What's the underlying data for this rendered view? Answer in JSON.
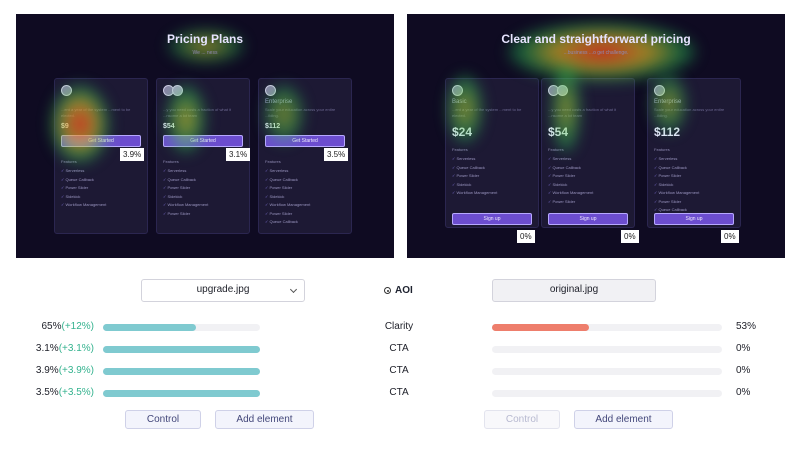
{
  "left_panel": {
    "title": "Pricing Plans",
    "subtitle": "We ... ness",
    "cards": [
      {
        "name": "",
        "desc": "...ent a year of the system ...ment to be elected.",
        "price": "$9",
        "button": "Get Started",
        "features_label": "Features",
        "features": [
          "Serverless",
          "Queue Callback",
          "Power Slider",
          "Sidekick",
          "Workflow Management"
        ],
        "cta_pct": "3.9%"
      },
      {
        "name": "",
        "desc": "...y you need costs a fraction of what it ...nsome a lot team",
        "price": "$54",
        "button": "Get Started",
        "features_label": "Features",
        "features": [
          "Serverless",
          "Queue Callback",
          "Power Slider",
          "Sidekick",
          "Workflow Management",
          "Power Slider"
        ],
        "cta_pct": "3.1%"
      },
      {
        "name": "Enterprise",
        "desc": "Scale your education across your entire ...ilding.",
        "price": "$112",
        "button": "Get Started",
        "features_label": "Features",
        "features": [
          "Serverless",
          "Queue Callback",
          "Power Slider",
          "Sidekick",
          "Workflow Management",
          "Power Slider",
          "Queue Callback"
        ],
        "cta_pct": "3.5%"
      }
    ]
  },
  "right_panel": {
    "title": "Clear and straightforward pricing",
    "subtitle": "...business ...o get challenge.",
    "cards": [
      {
        "name": "Basic",
        "desc": "...ent a year of the system ...ment to be elected.",
        "price": "$24",
        "button": "Sign up",
        "features_label": "Features",
        "features": [
          "Serverless",
          "Queue Callback",
          "Power Slider",
          "Sidekick",
          "Workflow Management"
        ],
        "cta_pct": "0%"
      },
      {
        "name": "",
        "desc": "...y you need costs a fraction of what it ...nsome a lot team",
        "price": "$54",
        "button": "Sign up",
        "features_label": "Features",
        "features": [
          "Serverless",
          "Queue Callback",
          "Power Slider",
          "Sidekick",
          "Workflow Management",
          "Power Slider"
        ],
        "cta_pct": "0%"
      },
      {
        "name": "Enterprise",
        "desc": "Scale your education across your entire ...ilding.",
        "price": "$112",
        "button": "Sign up",
        "features_label": "Features",
        "features": [
          "Serverless",
          "Queue Callback",
          "Power Slider",
          "Sidekick",
          "Workflow Management",
          "Power Slider",
          "Queue Callback"
        ],
        "cta_pct": "0%"
      }
    ]
  },
  "selectors": {
    "left": "upgrade.jpg",
    "right": "original.jpg",
    "aoi_label": "AOI"
  },
  "metrics": [
    {
      "left_value": "65%",
      "left_delta": "(+12%)",
      "left_fraction": 0.59,
      "label": "Clarity",
      "right_value": "53%",
      "right_fraction": 0.42
    },
    {
      "left_value": "3.1%",
      "left_delta": "(+3.1%)",
      "left_fraction": 1.0,
      "label": "CTA",
      "right_value": "0%",
      "right_fraction": 0
    },
    {
      "left_value": "3.9%",
      "left_delta": "(+3.9%)",
      "left_fraction": 1.0,
      "label": "CTA",
      "right_value": "0%",
      "right_fraction": 0
    },
    {
      "left_value": "3.5%",
      "left_delta": "(+3.5%)",
      "left_fraction": 1.0,
      "label": "CTA",
      "right_value": "0%",
      "right_fraction": 0
    }
  ],
  "buttons": {
    "left_control": "Control",
    "left_add": "Add element",
    "right_control": "Control",
    "right_add": "Add element"
  },
  "colors": {
    "panel_bg": "#0f0b22",
    "left_bar": "#7fcad0",
    "right_bar": "#ee7e6c",
    "delta_green": "#35b38f",
    "cta_purple": "#6c4dcf"
  }
}
